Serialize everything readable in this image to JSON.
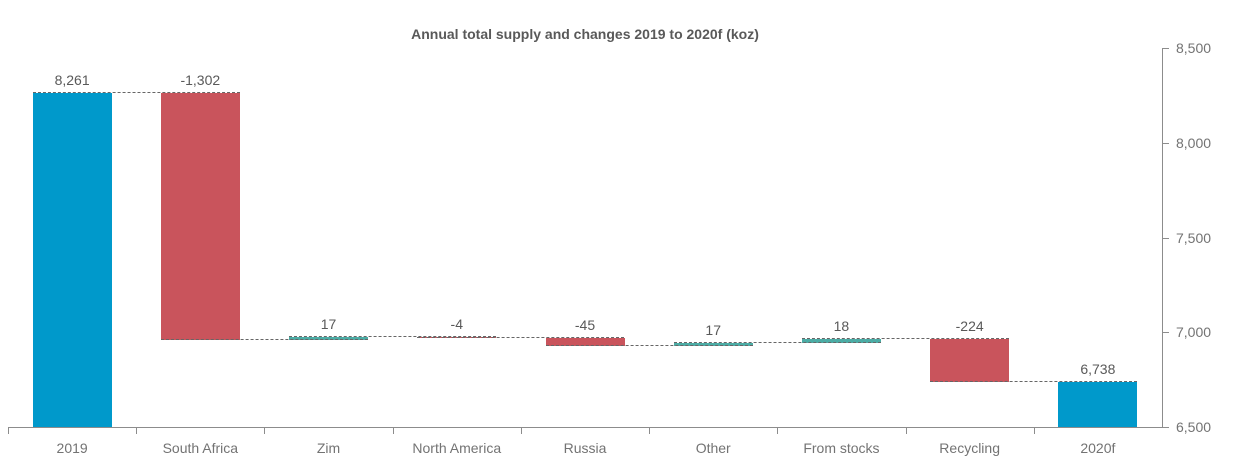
{
  "chart_data": {
    "type": "bar",
    "subtype": "waterfall",
    "title": "Annual total supply and changes 2019 to 2020f (koz)",
    "categories": [
      "2019",
      "South Africa",
      "Zim",
      "North America",
      "Russia",
      "Other",
      "From stocks",
      "Recycling",
      "2020f"
    ],
    "values": [
      8261,
      -1302,
      17,
      -4,
      -45,
      17,
      18,
      -224,
      6738
    ],
    "value_labels": [
      "8,261",
      "-1,302",
      "17",
      "-4",
      "-45",
      "17",
      "18",
      "-224",
      "6,738"
    ],
    "bar_roles": [
      "total",
      "change",
      "change",
      "change",
      "change",
      "change",
      "change",
      "change",
      "total"
    ],
    "running_totals": [
      8261,
      6959,
      6976,
      6972,
      6927,
      6944,
      6962,
      6738,
      6738
    ],
    "ylim": [
      6500,
      8500
    ],
    "ytick_step": 500,
    "ytick_labels": [
      "6,500",
      "7,000",
      "7,500",
      "8,000",
      "8,500"
    ],
    "yaxis_position": "right",
    "xlabel": "",
    "ylabel": "",
    "grid": false,
    "legend": false,
    "connector_style": "dashed"
  },
  "colors": {
    "total_bar": "#0099CB",
    "increase_bar": "#4CACA5",
    "decrease_bar": "#C9545C",
    "connector": "#666666",
    "axis": "#8c8c8c",
    "axis_label": "#737373",
    "value_label": "#595959",
    "title": "#595959",
    "background": "#ffffff"
  }
}
